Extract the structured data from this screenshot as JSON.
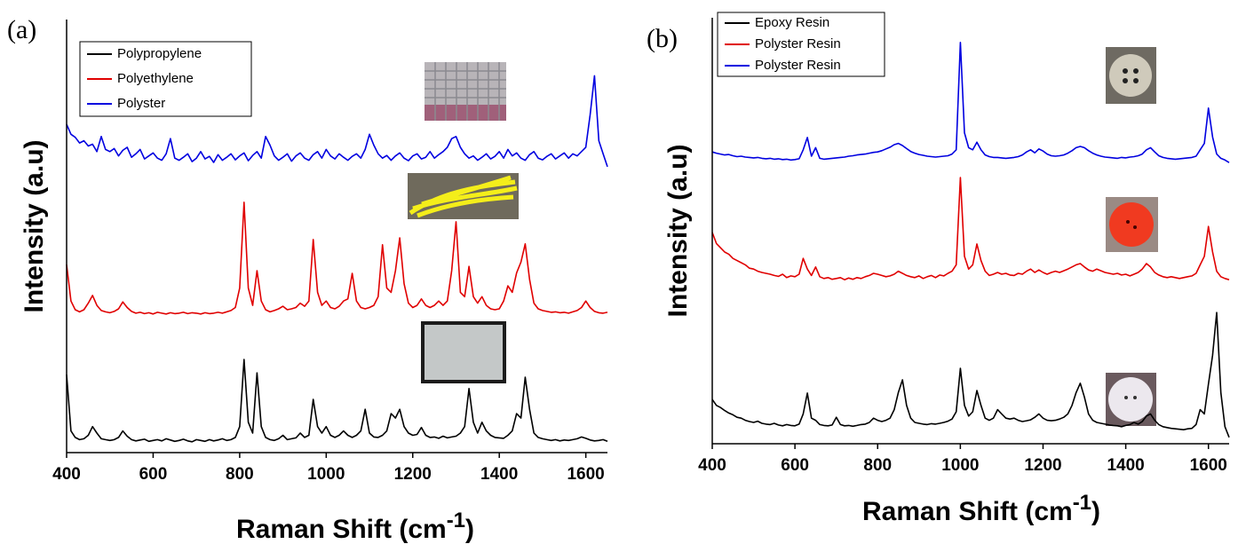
{
  "chart_data": [
    {
      "type": "line",
      "panel_label": "(a)",
      "xlabel": "Raman Shift (cm",
      "xlabel_sup": "-1",
      "xlabel_end": ")",
      "ylabel": "Intensity (a.u)",
      "legend": "upper left",
      "xlim": [
        400,
        1650
      ],
      "xticks": [
        400,
        600,
        800,
        1000,
        1200,
        1400,
        1600
      ],
      "ylim": [
        0,
        100
      ],
      "x": [
        400,
        410,
        420,
        430,
        440,
        450,
        460,
        470,
        480,
        490,
        500,
        510,
        520,
        530,
        540,
        550,
        560,
        570,
        580,
        590,
        600,
        610,
        620,
        630,
        640,
        650,
        660,
        670,
        680,
        690,
        700,
        710,
        720,
        730,
        740,
        750,
        760,
        770,
        780,
        790,
        800,
        810,
        820,
        830,
        840,
        850,
        860,
        870,
        880,
        890,
        900,
        910,
        920,
        930,
        940,
        950,
        960,
        970,
        980,
        990,
        1000,
        1010,
        1020,
        1030,
        1040,
        1050,
        1060,
        1070,
        1080,
        1090,
        1100,
        1110,
        1120,
        1130,
        1140,
        1150,
        1160,
        1170,
        1180,
        1190,
        1200,
        1210,
        1220,
        1230,
        1240,
        1250,
        1260,
        1270,
        1280,
        1290,
        1300,
        1310,
        1320,
        1330,
        1340,
        1350,
        1360,
        1370,
        1380,
        1390,
        1400,
        1410,
        1420,
        1430,
        1440,
        1450,
        1460,
        1470,
        1480,
        1490,
        1500,
        1510,
        1520,
        1530,
        1540,
        1550,
        1560,
        1570,
        1580,
        1590,
        1600,
        1610,
        1620,
        1630,
        1640,
        1650
      ],
      "series": [
        {
          "name": "Polypropylene",
          "color": "#000000",
          "values": [
            18,
            5,
            3.5,
            3,
            3.2,
            4,
            6,
            4.5,
            3.2,
            3,
            2.8,
            3,
            3.5,
            5,
            3.8,
            3,
            2.7,
            2.9,
            3.1,
            2.6,
            2.8,
            3,
            2.7,
            3.2,
            2.9,
            2.6,
            2.8,
            3.1,
            2.7,
            2.5,
            3,
            2.8,
            2.6,
            3,
            2.7,
            2.9,
            3.2,
            2.8,
            3,
            3.5,
            6,
            21.5,
            7,
            4.5,
            18.4,
            6,
            3.5,
            3,
            2.8,
            3.2,
            4,
            3,
            3.2,
            3.4,
            4.5,
            3.5,
            4,
            12.3,
            6,
            4.5,
            6,
            4,
            3.5,
            4,
            5,
            4,
            3.5,
            4,
            5,
            10,
            4.5,
            3.6,
            3.5,
            4,
            5,
            9,
            8,
            10,
            6,
            4.5,
            4,
            4.2,
            5.8,
            4,
            3.5,
            3.6,
            3.3,
            3.8,
            3.4,
            3.6,
            3.8,
            4.5,
            6,
            14.8,
            7,
            4.5,
            7,
            5,
            4,
            3.5,
            3.4,
            3.3,
            4,
            5,
            9,
            8,
            17.4,
            10,
            4.5,
            3.5,
            3.2,
            3,
            2.8,
            3,
            2.7,
            2.9,
            2.8,
            3,
            3.2,
            3.6,
            3.3,
            2.9,
            2.7,
            2.8,
            3,
            2.6
          ]
        },
        {
          "name": "Polyethylene",
          "color": "#e00000",
          "values": [
            43.4,
            35,
            33,
            32.5,
            33,
            34.5,
            36.3,
            34,
            32.8,
            32.5,
            32.3,
            32.6,
            33.2,
            34.8,
            33.5,
            32.6,
            32.2,
            32.4,
            32.1,
            32.3,
            32,
            32.4,
            32.2,
            32,
            32.3,
            32.1,
            32.2,
            32.4,
            32.1,
            32.3,
            32.2,
            32,
            32.3,
            32.1,
            32.2,
            32.4,
            32.2,
            32.5,
            32.8,
            33.5,
            38,
            57.8,
            38,
            34,
            42,
            35,
            33,
            32.5,
            32.8,
            33.2,
            33.8,
            33,
            33.2,
            33.5,
            34.5,
            33.8,
            35,
            49.2,
            37,
            34,
            35,
            33.5,
            33.2,
            33.8,
            35,
            35.5,
            41.4,
            35,
            33.5,
            33.2,
            33.5,
            34,
            36,
            48,
            38,
            37,
            42,
            49.6,
            39,
            34.5,
            33.5,
            34,
            35.5,
            34,
            33.5,
            34,
            35,
            34,
            35,
            42,
            53.3,
            37,
            36,
            43,
            36,
            34.5,
            36,
            34,
            33.2,
            33,
            33.2,
            35,
            38.5,
            37,
            41.5,
            44,
            48.2,
            40,
            34.5,
            33.2,
            32.8,
            32.6,
            32.4,
            32.5,
            32.3,
            32.4,
            32.2,
            32.5,
            32.8,
            33.5,
            35,
            33.5,
            32.6,
            32.3,
            32.2,
            32.4
          ]
        },
        {
          "name": "Polyster",
          "color": "#0000e0",
          "values": [
            75.8,
            73.5,
            72.8,
            71.5,
            72,
            70.8,
            71.2,
            69.5,
            73,
            70,
            69.5,
            70.2,
            68.5,
            69.8,
            70.5,
            68.2,
            69,
            70,
            67.8,
            68.5,
            69.2,
            68,
            67.5,
            69,
            72.5,
            68,
            67.5,
            68.2,
            69,
            67.2,
            68,
            69.5,
            67.8,
            68.4,
            67,
            68.8,
            67.5,
            68.2,
            69,
            67.6,
            68.5,
            69.2,
            67.4,
            68.6,
            69.5,
            68,
            73,
            71,
            68.5,
            67.5,
            68.2,
            69,
            67.3,
            68.5,
            69.2,
            68,
            67.5,
            68.8,
            69.5,
            68,
            70,
            68.5,
            67.8,
            69,
            68.2,
            67.5,
            68.4,
            69,
            68,
            70,
            73.5,
            71,
            69,
            68,
            68.6,
            67.5,
            68.5,
            69.2,
            68,
            67.4,
            68.5,
            69,
            67.8,
            68.2,
            69.5,
            68,
            68.8,
            69.5,
            70.5,
            72.5,
            73,
            70.5,
            69,
            68,
            68.5,
            67.5,
            68.2,
            69,
            67.8,
            68.4,
            69.5,
            68,
            70,
            68.5,
            69.2,
            68,
            67.5,
            68.8,
            69.5,
            68,
            67.6,
            68.4,
            69,
            67.8,
            68.5,
            69.2,
            68,
            69,
            68.5,
            69.5,
            70.5,
            78,
            87,
            72,
            69,
            66
          ]
        }
      ]
    },
    {
      "type": "line",
      "panel_label": "(b)",
      "xlabel": "Raman Shift (cm",
      "xlabel_sup": "-1",
      "xlabel_end": ")",
      "ylabel": "Intensity (a.u)",
      "legend": "upper left",
      "xlim": [
        400,
        1650
      ],
      "xticks": [
        400,
        600,
        800,
        1000,
        1200,
        1400,
        1600
      ],
      "ylim": [
        0,
        100
      ],
      "x": [
        400,
        410,
        420,
        430,
        440,
        450,
        460,
        470,
        480,
        490,
        500,
        510,
        520,
        530,
        540,
        550,
        560,
        570,
        580,
        590,
        600,
        610,
        620,
        630,
        640,
        650,
        660,
        670,
        680,
        690,
        700,
        710,
        720,
        730,
        740,
        750,
        760,
        770,
        780,
        790,
        800,
        810,
        820,
        830,
        840,
        850,
        860,
        870,
        880,
        890,
        900,
        910,
        920,
        930,
        940,
        950,
        960,
        970,
        980,
        990,
        1000,
        1010,
        1020,
        1030,
        1040,
        1050,
        1060,
        1070,
        1080,
        1090,
        1100,
        1110,
        1120,
        1130,
        1140,
        1150,
        1160,
        1170,
        1180,
        1190,
        1200,
        1210,
        1220,
        1230,
        1240,
        1250,
        1260,
        1270,
        1280,
        1290,
        1300,
        1310,
        1320,
        1330,
        1340,
        1350,
        1360,
        1370,
        1380,
        1390,
        1400,
        1410,
        1420,
        1430,
        1440,
        1450,
        1460,
        1470,
        1480,
        1490,
        1500,
        1510,
        1520,
        1530,
        1540,
        1550,
        1560,
        1570,
        1580,
        1590,
        1600,
        1610,
        1620,
        1630,
        1640,
        1650
      ],
      "series": [
        {
          "name": "Epoxy Resin",
          "color": "#000000",
          "values": [
            10.4,
            9,
            8.5,
            7.8,
            7.2,
            6.8,
            6.2,
            6,
            5.5,
            5.2,
            5,
            5.3,
            4.8,
            4.6,
            4.5,
            4.8,
            4.4,
            4.2,
            4.5,
            4.3,
            4.2,
            4.6,
            7,
            11.9,
            6,
            5.5,
            4.5,
            4.3,
            4.2,
            4.4,
            6.2,
            4.5,
            4.2,
            4.3,
            4.1,
            4.3,
            4.5,
            4.6,
            5,
            6,
            5.5,
            5.2,
            5.5,
            6,
            8,
            12,
            15,
            9,
            6,
            5,
            4.8,
            4.6,
            4.5,
            4.7,
            4.6,
            4.8,
            5,
            5.3,
            5.8,
            7.5,
            17.7,
            9,
            6.5,
            7.5,
            12.5,
            9,
            6,
            5.5,
            6,
            8,
            7,
            6,
            5.8,
            6,
            5.5,
            5.2,
            5.4,
            5.6,
            6.2,
            7,
            6,
            5.5,
            5.4,
            5.5,
            5.8,
            6.2,
            7,
            9,
            12,
            14.2,
            11,
            7,
            5.5,
            5,
            4.8,
            4.6,
            4.4,
            4.3,
            4.2,
            4,
            4.3,
            4.5,
            5,
            4.6,
            5.2,
            6.5,
            7,
            5.5,
            4.5,
            4,
            3.8,
            3.6,
            3.5,
            3.4,
            3.3,
            3.5,
            3.6,
            4.5,
            8,
            7,
            14,
            20.8,
            30.8,
            12,
            4,
            1.5
          ]
        },
        {
          "name": "Polyster Resin",
          "color": "#e00000",
          "values": [
            49.6,
            47,
            46,
            45,
            44.5,
            43.5,
            43,
            42.5,
            42,
            41.2,
            41,
            40.5,
            40.2,
            40,
            39.8,
            39.5,
            39.3,
            39.8,
            39,
            39.4,
            39.2,
            39.8,
            43.5,
            41,
            39.5,
            41.5,
            39.2,
            38.8,
            39,
            38.6,
            38.8,
            39,
            38.5,
            38.9,
            38.6,
            39,
            38.8,
            39.2,
            39.5,
            40,
            39.8,
            39.5,
            39.2,
            39.4,
            39.8,
            40.5,
            40,
            39.5,
            39.2,
            39,
            39.4,
            38.8,
            39.2,
            39.5,
            39,
            39.6,
            39.4,
            40,
            40.5,
            42,
            62.5,
            44,
            41,
            42,
            46.9,
            43,
            40.5,
            39.5,
            39.8,
            40.2,
            39.8,
            40,
            39.6,
            39.5,
            40,
            39.8,
            40.5,
            41,
            40.2,
            40.8,
            40.2,
            39.8,
            40.2,
            40.5,
            40.2,
            40.6,
            41,
            41.5,
            42,
            42.3,
            41.5,
            40.8,
            40.5,
            41,
            40.6,
            40.2,
            40,
            39.8,
            40,
            39.6,
            39.8,
            39.4,
            39.8,
            40.2,
            41,
            42.3,
            41.5,
            40.2,
            39.6,
            39.2,
            39,
            39.2,
            39,
            38.8,
            39,
            39.2,
            39.4,
            40,
            42,
            44,
            51,
            45,
            40.5,
            39.2,
            38.8,
            38.5
          ]
        },
        {
          "name": "Polyster Resin",
          "color": "#0000e0",
          "values": [
            68.5,
            68.2,
            68,
            67.8,
            67.9,
            67.6,
            67.4,
            67.5,
            67.3,
            67.2,
            67.1,
            67.2,
            67,
            66.9,
            67,
            66.8,
            66.9,
            66.7,
            66.8,
            66.6,
            66.7,
            66.9,
            69,
            71.9,
            67.5,
            69.5,
            67,
            66.8,
            66.9,
            67,
            67.1,
            67.2,
            67.3,
            67.5,
            67.6,
            67.8,
            67.9,
            68,
            68.2,
            68.4,
            68.5,
            68.8,
            69.2,
            69.6,
            70.2,
            70.5,
            70,
            69.3,
            68.6,
            68.2,
            67.9,
            67.7,
            67.5,
            67.4,
            67.3,
            67.4,
            67.5,
            67.6,
            68,
            69,
            94.2,
            73,
            69.5,
            69,
            70.8,
            69,
            67.8,
            67.4,
            67.2,
            67.2,
            67.1,
            67,
            67.1,
            67.2,
            67.4,
            67.8,
            68.5,
            69,
            68.3,
            69.2,
            68.7,
            68,
            67.6,
            67.5,
            67.6,
            67.8,
            68.2,
            68.8,
            69.5,
            69.8,
            69.5,
            68.8,
            68.2,
            67.8,
            67.5,
            67.3,
            67.2,
            67.1,
            67,
            67.2,
            67.1,
            67.3,
            67.4,
            67.6,
            68,
            69,
            69.5,
            68.5,
            67.6,
            67.2,
            67,
            66.9,
            66.8,
            66.9,
            67,
            67.1,
            67.2,
            67.5,
            69,
            70.5,
            78.8,
            72,
            68,
            67,
            66.6,
            66
          ]
        }
      ]
    }
  ]
}
